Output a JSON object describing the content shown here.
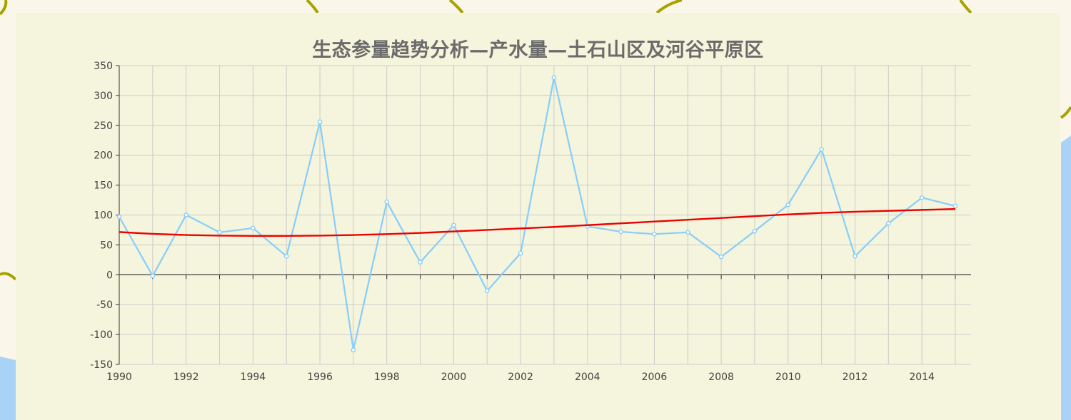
{
  "chart_data": {
    "type": "line",
    "title": "生态参量趋势分析—产水量—土石山区及河谷平原区",
    "xlabel": "",
    "ylabel": "",
    "x": [
      1990,
      1991,
      1992,
      1993,
      1994,
      1995,
      1996,
      1997,
      1998,
      1999,
      2000,
      2001,
      2002,
      2003,
      2004,
      2005,
      2006,
      2007,
      2008,
      2009,
      2010,
      2011,
      2012,
      2013,
      2014,
      2015
    ],
    "x_tick_labels": [
      "1990",
      "1992",
      "1994",
      "1996",
      "1998",
      "2000",
      "2002",
      "2004",
      "2006",
      "2008",
      "2010",
      "2012",
      "2014"
    ],
    "y_tick_labels": [
      "-150",
      "-100",
      "-50",
      "0",
      "50",
      "100",
      "150",
      "200",
      "250",
      "300",
      "350"
    ],
    "ylim": [
      -150,
      350
    ],
    "xlim": [
      1990,
      2015
    ],
    "grid": true,
    "series": [
      {
        "type": "line",
        "color": "#87cefa",
        "markers": true,
        "values": [
          97,
          -2,
          100,
          71,
          78,
          31,
          256,
          -126,
          122,
          21,
          83,
          -27,
          36,
          330,
          81,
          72,
          68,
          71,
          30,
          73,
          117,
          210,
          31,
          86,
          129,
          115
        ]
      },
      {
        "type": "trend",
        "color": "#ee0000",
        "markers": false,
        "values": [
          71.5,
          68.5,
          66.5,
          65.5,
          65,
          65,
          65.5,
          66.5,
          68,
          70,
          72.5,
          75,
          77.5,
          80,
          83,
          86,
          89,
          92,
          95,
          98,
          101,
          103.5,
          105.5,
          107,
          108.5,
          110
        ]
      }
    ]
  },
  "colors": {
    "panel_background": "#f5f4dc",
    "axis": "#333333",
    "grid": "#cccccc",
    "title": "#6b6b6b"
  }
}
